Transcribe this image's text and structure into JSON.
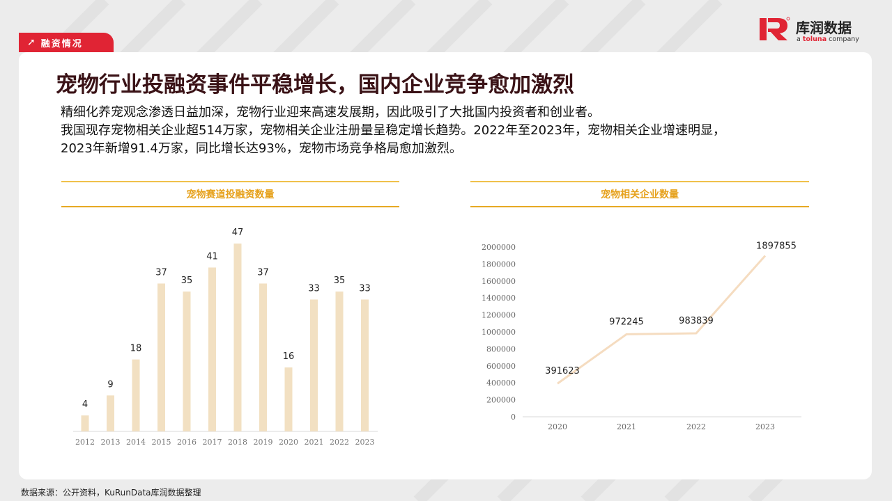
{
  "tag": {
    "arrow": "➚",
    "label": "融资情况"
  },
  "logo": {
    "name": "库润数据",
    "sub_prefix": "a ",
    "sub_brand": "toluna",
    "sub_suffix": " company"
  },
  "title": "宠物行业投融资事件平稳增长，国内企业竞争愈加激烈",
  "body": {
    "line1": "精细化养宠观念渗透日益加深，宠物行业迎来高速发展期，因此吸引了大批国内投资者和创业者。",
    "line2": "我国现存宠物相关企业超514万家，宠物相关企业注册量呈稳定增长趋势。2022年至2023年，宠物相关企业增速明显，",
    "line3": "2023年新增91.4万家，同比增长达93%，宠物市场竞争格局愈加激烈。"
  },
  "source": "数据来源：公开资料，KuRunData库润数据整理",
  "colors": {
    "accent": "#e02434",
    "bar": "#f2e0c2",
    "line": "#f5dcc0",
    "title_gold": "#e6a11c"
  },
  "chart_data": [
    {
      "type": "bar",
      "title": "宠物赛道投融资数量",
      "categories": [
        "2012",
        "2013",
        "2014",
        "2015",
        "2016",
        "2017",
        "2018",
        "2019",
        "2020",
        "2021",
        "2022",
        "2023"
      ],
      "values": [
        4,
        9,
        18,
        37,
        35,
        41,
        47,
        37,
        16,
        33,
        35,
        33
      ],
      "ylim": [
        0,
        47
      ],
      "grid": false,
      "legend": "none"
    },
    {
      "type": "line",
      "title": "宠物相关企业数量",
      "categories": [
        "2020",
        "2021",
        "2022",
        "2023"
      ],
      "values": [
        391623,
        972245,
        983839,
        1897855
      ],
      "ylim": [
        0,
        2000000
      ],
      "yticks": [
        0,
        200000,
        400000,
        600000,
        800000,
        1000000,
        1200000,
        1400000,
        1600000,
        1800000,
        2000000
      ],
      "grid": false,
      "legend": "none"
    }
  ]
}
